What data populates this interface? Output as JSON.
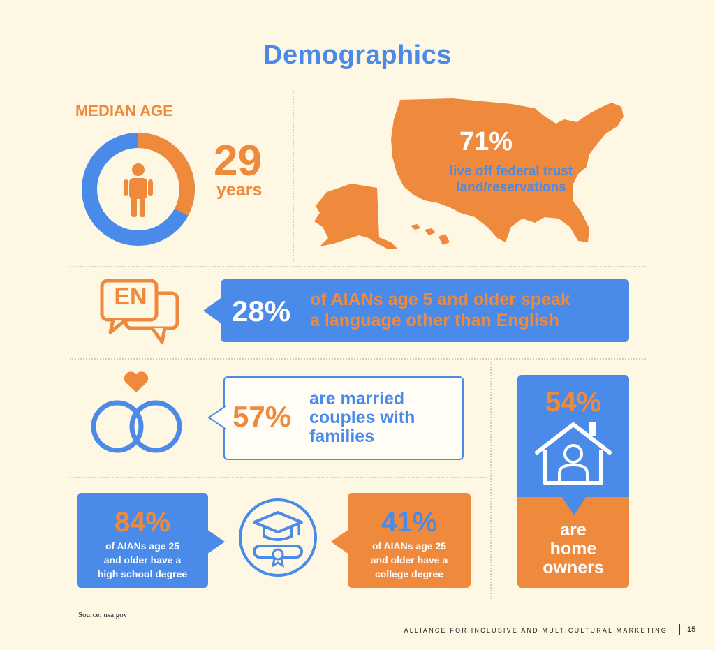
{
  "title": "Demographics",
  "median_age": {
    "label": "MEDIAN AGE",
    "value": "29",
    "unit": "years"
  },
  "off_reservation": {
    "percent": "71%",
    "text_line1": "live off federal trust",
    "text_line2": "land/reservations"
  },
  "language": {
    "icon_text": "EN",
    "percent": "28%",
    "text_line1": "of AIANs age 5 and older speak",
    "text_line2": "a language other than English"
  },
  "married": {
    "percent": "57%",
    "text_line1": "are married",
    "text_line2": "couples with",
    "text_line3": "families"
  },
  "homeowners": {
    "percent": "54%",
    "text_line1": "are",
    "text_line2": "home",
    "text_line3": "owners"
  },
  "high_school": {
    "percent": "84%",
    "text_line1": "of AIANs age 25",
    "text_line2": "and older have a",
    "text_line3": "high school degree"
  },
  "college": {
    "percent": "41%",
    "text_line1": "of AIANs age 25",
    "text_line2": "and older have a",
    "text_line3": "college degree"
  },
  "source": "Source: usa.gov",
  "footer": {
    "org": "ALLIANCE FOR INCLUSIVE AND MULTICULTURAL MARKETING",
    "page": "15"
  },
  "colors": {
    "blue": "#4a8ae8",
    "orange": "#ef8a3c",
    "background": "#fdf7e4"
  }
}
